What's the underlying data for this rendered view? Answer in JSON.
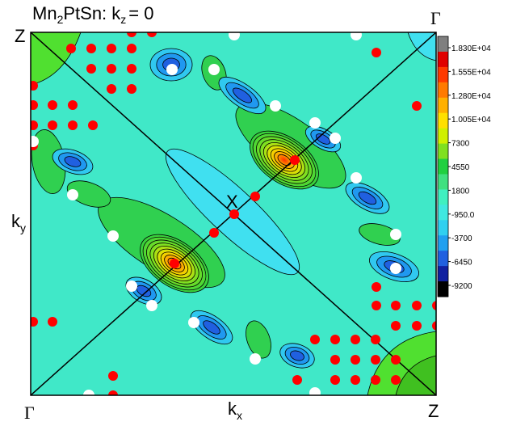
{
  "chart_data": {
    "type": "heatmap",
    "title": {
      "base": "Mn",
      "sub": "2",
      "mid": "PtSn: k",
      "sub2": "z",
      "tail": "= 0"
    },
    "xlabel": {
      "base": "k",
      "sub": "x"
    },
    "ylabel": {
      "base": "k",
      "sub": "y"
    },
    "corner_labels": {
      "top_left": "Z",
      "top_right": "Γ",
      "bottom_left": "Γ",
      "bottom_right": "Z",
      "center": "X"
    },
    "colorbar": {
      "ticks": [
        "1.830E+04",
        "1.555E+04",
        "1.280E+04",
        "1.005E+04",
        "7300",
        "4550",
        "1800",
        "-950.0",
        "-3700",
        "-6450",
        "-9200"
      ],
      "tick_values": [
        18300,
        15550,
        12800,
        10050,
        7300,
        4550,
        1800,
        -950,
        -3700,
        -6450,
        -9200
      ],
      "colors": [
        "#7f7f7f",
        "#e00000",
        "#ff3a00",
        "#ff7a00",
        "#ffb000",
        "#ffe000",
        "#d0f000",
        "#80e020",
        "#20d040",
        "#40e080",
        "#40f0c0",
        "#40e8e0",
        "#30d0f0",
        "#20a0f0",
        "#2060e0",
        "#1020a0",
        "#000000"
      ]
    },
    "background_color": "#40e8c8",
    "marker_colors": {
      "red": "#ff0000",
      "white": "#ffffff"
    }
  }
}
